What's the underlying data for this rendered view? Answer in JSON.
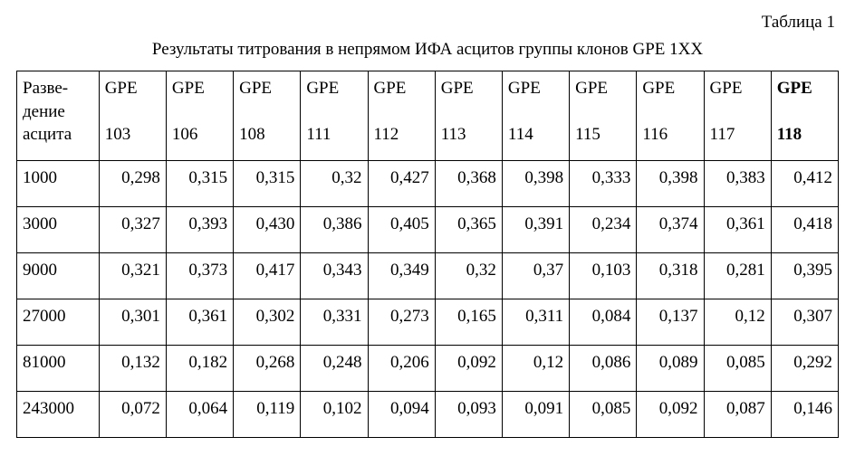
{
  "table_label": "Таблица 1",
  "caption": "Результаты титрования в непрямом ИФА асцитов группы клонов GPE 1XX",
  "header_col0_l1": "Разве-",
  "header_col0_l2": "дение",
  "header_col0_l3": "асцита",
  "cols": [
    "GPE",
    "GPE",
    "GPE",
    "GPE",
    "GPE",
    "GPE",
    "GPE",
    "GPE",
    "GPE",
    "GPE",
    "GPE"
  ],
  "col_nums": [
    "103",
    "106",
    "108",
    "111",
    "112",
    "113",
    "114",
    "115",
    "116",
    "117",
    "118"
  ],
  "rows": [
    {
      "d": "1000",
      "v": [
        "0,298",
        "0,315",
        "0,315",
        "0,32",
        "0,427",
        "0,368",
        "0,398",
        "0,333",
        "0,398",
        "0,383",
        "0,412"
      ]
    },
    {
      "d": "3000",
      "v": [
        "0,327",
        "0,393",
        "0,430",
        "0,386",
        "0,405",
        "0,365",
        "0,391",
        "0,234",
        "0,374",
        "0,361",
        "0,418"
      ]
    },
    {
      "d": "9000",
      "v": [
        "0,321",
        "0,373",
        "0,417",
        "0,343",
        "0,349",
        "0,32",
        "0,37",
        "0,103",
        "0,318",
        "0,281",
        "0,395"
      ]
    },
    {
      "d": "27000",
      "v": [
        "0,301",
        "0,361",
        "0,302",
        "0,331",
        "0,273",
        "0,165",
        "0,311",
        "0,084",
        "0,137",
        "0,12",
        "0,307"
      ]
    },
    {
      "d": "81000",
      "v": [
        "0,132",
        "0,182",
        "0,268",
        "0,248",
        "0,206",
        "0,092",
        "0,12",
        "0,086",
        "0,089",
        "0,085",
        "0,292"
      ]
    },
    {
      "d": "243000",
      "v": [
        "0,072",
        "0,064",
        "0,119",
        "0,102",
        "0,094",
        "0,093",
        "0,091",
        "0,085",
        "0,092",
        "0,087",
        "0,146"
      ]
    }
  ],
  "styling": {
    "font_family": "Times New Roman",
    "base_fontsize_pt": 14,
    "border_color": "#000000",
    "background": "#ffffff",
    "bold_last_col_header": true
  }
}
